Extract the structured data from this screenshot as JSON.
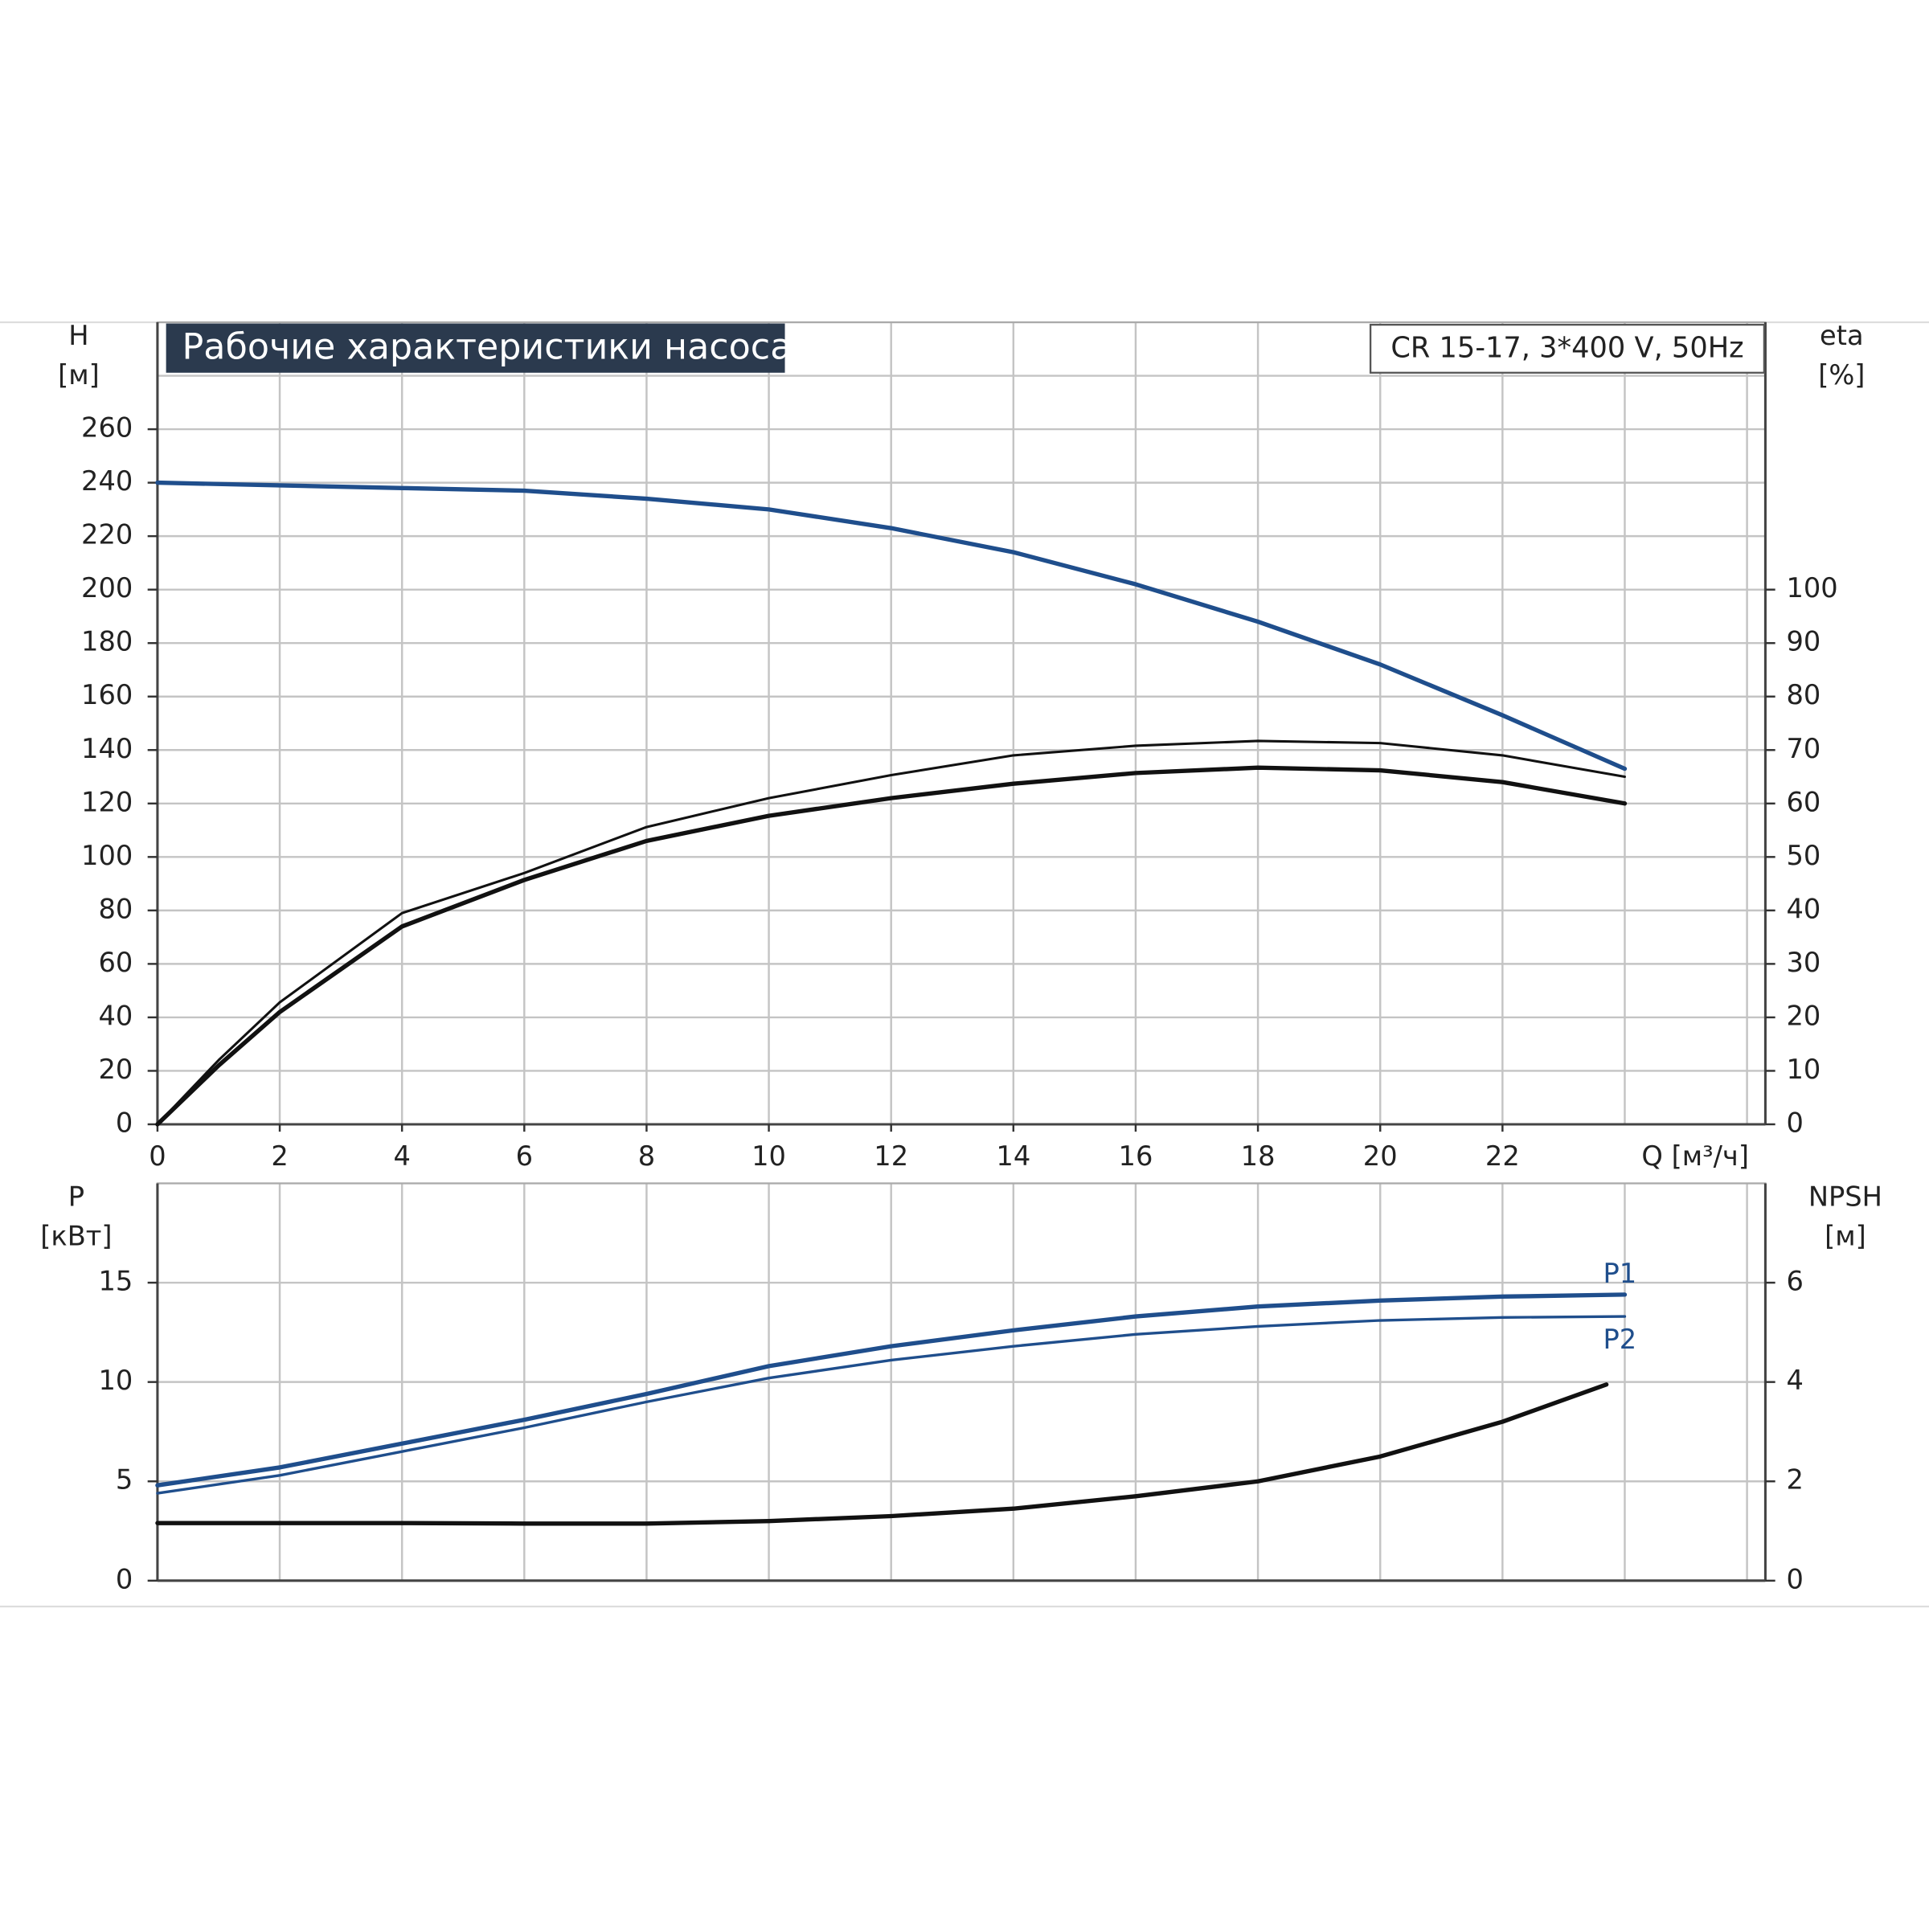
{
  "chart_data": [
    {
      "type": "line",
      "title": "Рабочие характеристики насоса",
      "subtitle": "CR 15-17, 3*400 V, 50Hz",
      "ylabel": "H",
      "yunit": "[м]",
      "y2label": "eta",
      "y2unit": "[%]",
      "xlabel": "Q [м³/ч]",
      "xlim": [
        0,
        26.3
      ],
      "xticks": [
        0,
        2,
        4,
        6,
        8,
        10,
        12,
        14,
        16,
        18,
        20,
        22
      ],
      "xgrid": [
        24,
        26
      ],
      "ylim": [
        0,
        300
      ],
      "yticks": [
        0,
        20,
        40,
        60,
        80,
        100,
        120,
        140,
        160,
        180,
        200,
        220,
        240,
        260
      ],
      "ygrid": [
        280
      ],
      "y2lim": [
        0,
        150
      ],
      "y2ticks": [
        0,
        10,
        20,
        30,
        40,
        50,
        60,
        70,
        80,
        90,
        100
      ],
      "grid": true,
      "series": [
        {
          "color": "#1f4e8c",
          "line_width": 3.5,
          "axis": "y",
          "x": [
            0,
            2,
            4,
            6,
            8,
            10,
            12,
            14,
            16,
            18,
            20,
            22,
            24
          ],
          "values": [
            240,
            239,
            238,
            237,
            234,
            230,
            223,
            214,
            202,
            188,
            172,
            153,
            133
          ]
        },
        {
          "color": "#111111",
          "line_width": 2,
          "axis": "y2",
          "x": [
            0,
            1,
            2,
            4,
            6,
            8,
            10,
            12,
            14,
            16,
            18,
            20,
            22,
            24
          ],
          "values": [
            0,
            12,
            22.8,
            39.5,
            47,
            55.6,
            61,
            65.3,
            69,
            70.8,
            71.7,
            71.3,
            69,
            65
          ]
        },
        {
          "color": "#111111",
          "line_width": 3.5,
          "axis": "y2",
          "x": [
            0,
            1,
            2,
            4,
            6,
            8,
            10,
            12,
            14,
            16,
            18,
            20,
            22,
            24
          ],
          "values": [
            0,
            11,
            21,
            37,
            45.7,
            53,
            57.7,
            61,
            63.7,
            65.7,
            66.7,
            66.2,
            64,
            60
          ]
        }
      ]
    },
    {
      "type": "line",
      "ylabel": "P",
      "yunit": "[кВт]",
      "y2label": "NPSH",
      "y2unit": "[м]",
      "xlim": [
        0,
        26.3
      ],
      "xgrid": [
        0,
        2,
        4,
        6,
        8,
        10,
        12,
        14,
        16,
        18,
        20,
        22,
        24,
        26
      ],
      "ylim": [
        0,
        20
      ],
      "yticks": [
        0,
        5,
        10,
        15
      ],
      "y2lim": [
        0,
        8
      ],
      "y2ticks": [
        0,
        2,
        4,
        6
      ],
      "grid": true,
      "series": [
        {
          "name": "P1",
          "color": "#1f4e8c",
          "line_width": 3.5,
          "axis": "y",
          "x": [
            0,
            2,
            4,
            6,
            8,
            10,
            12,
            14,
            16,
            18,
            20,
            22,
            24
          ],
          "values": [
            4.8,
            5.7,
            6.9,
            8.1,
            9.4,
            10.8,
            11.8,
            12.6,
            13.3,
            13.8,
            14.1,
            14.3,
            14.4
          ]
        },
        {
          "name": "P2",
          "color": "#1f4e8c",
          "line_width": 2.2,
          "axis": "y",
          "x": [
            0,
            2,
            4,
            6,
            8,
            10,
            12,
            14,
            16,
            18,
            20,
            22,
            24
          ],
          "values": [
            4.4,
            5.3,
            6.5,
            7.7,
            9.0,
            10.2,
            11.1,
            11.8,
            12.4,
            12.8,
            13.1,
            13.25,
            13.3
          ]
        },
        {
          "color": "#111111",
          "line_width": 3.5,
          "axis": "y2",
          "x": [
            0,
            2,
            4,
            6,
            8,
            10,
            12,
            14,
            16,
            18,
            20,
            22,
            23.7
          ],
          "values": [
            1.16,
            1.16,
            1.16,
            1.15,
            1.15,
            1.2,
            1.3,
            1.45,
            1.7,
            2.0,
            2.5,
            3.2,
            3.95
          ]
        }
      ]
    }
  ]
}
